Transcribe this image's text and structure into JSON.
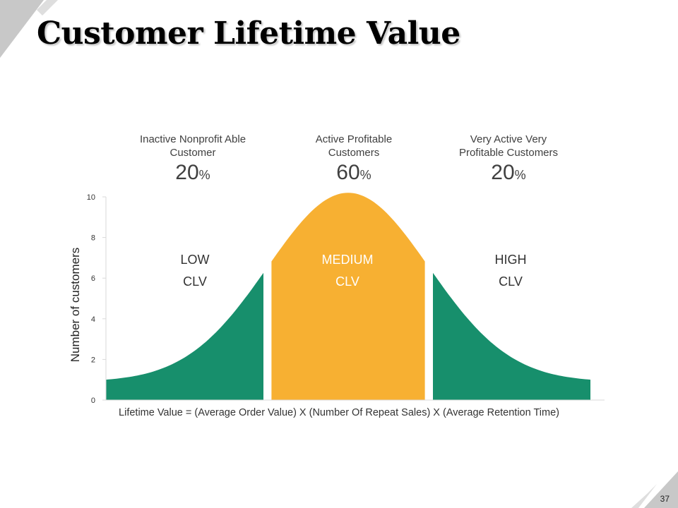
{
  "title": "Customer Lifetime Value",
  "page_number": "37",
  "segments": [
    {
      "heading_line1": "Inactive Nonprofit Able",
      "heading_line2": "Customer",
      "percent": "20",
      "percent_sign": "%",
      "label_line1": "LOW",
      "label_line2": "CLV"
    },
    {
      "heading_line1": "Active Profitable",
      "heading_line2": "Customers",
      "percent": "60",
      "percent_sign": "%",
      "label_line1": "MEDIUM",
      "label_line2": "CLV"
    },
    {
      "heading_line1": "Very Active Very",
      "heading_line2": "Profitable Customers",
      "percent": "20",
      "percent_sign": "%",
      "label_line1": "HIGH",
      "label_line2": "CLV"
    }
  ],
  "colors": {
    "low": "#178f6c",
    "medium": "#f7b032",
    "high": "#178f6c",
    "corner": "#bfbfbf",
    "axis": "#d9d9d9"
  },
  "chart_data": {
    "type": "area",
    "title": "",
    "xlabel": "Lifetime Value = (Average Order Value) X (Number Of Repeat Sales) X (Average Retention Time)",
    "ylabel": "Number of customers",
    "ylim": [
      0,
      10
    ],
    "y_ticks": [
      "0",
      "2",
      "4",
      "6",
      "8",
      "10"
    ],
    "distribution": {
      "shape": "normal",
      "peak": 10.2,
      "baseline": 0.9,
      "x_range": [
        -3,
        3
      ],
      "sigma": 1
    },
    "bands": [
      {
        "name": "LOW CLV",
        "x_from": -3,
        "x_to": -1,
        "share_percent": 20
      },
      {
        "name": "MEDIUM CLV",
        "x_from": -1,
        "x_to": 1,
        "share_percent": 60
      },
      {
        "name": "HIGH CLV",
        "x_from": 1,
        "x_to": 3,
        "share_percent": 20
      }
    ],
    "grid": false,
    "legend": "none"
  }
}
